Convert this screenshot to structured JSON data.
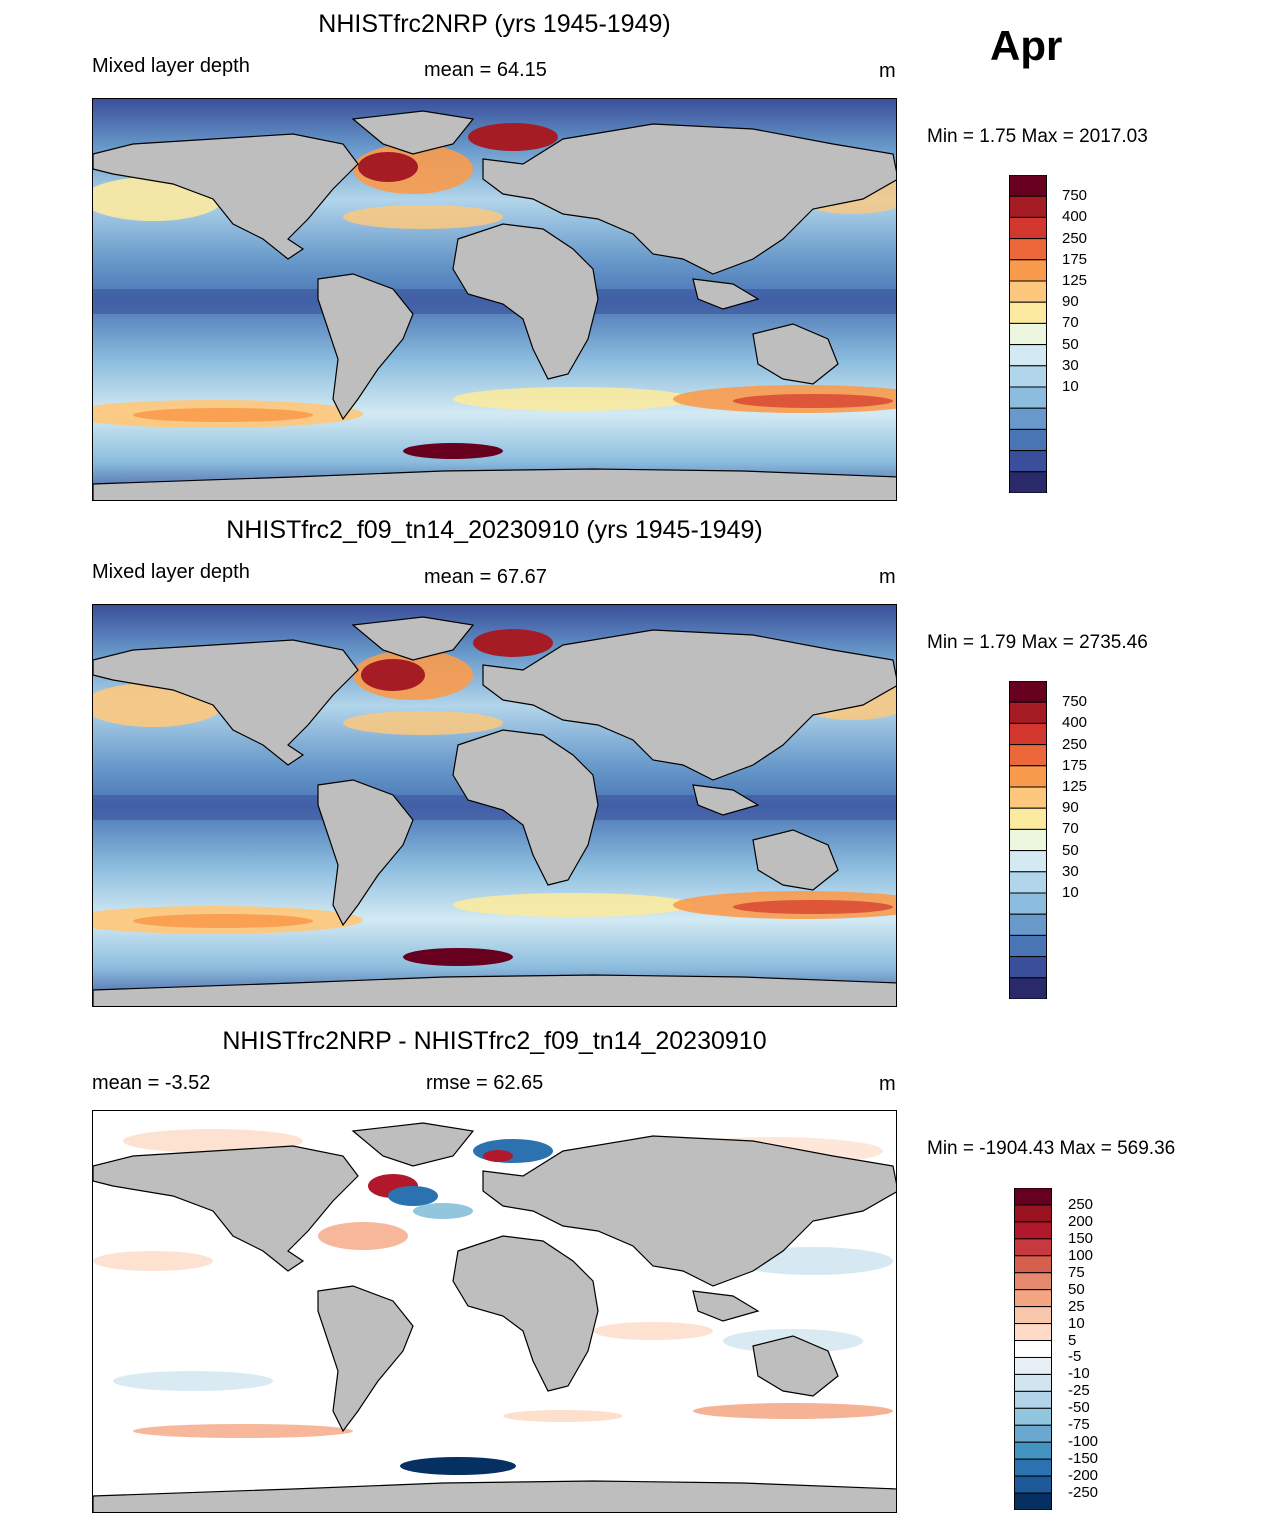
{
  "month": "Apr",
  "panels": [
    {
      "id": "p1",
      "title": "NHISTfrc2NRP (yrs 1945-1949)",
      "left_label": "Mixed layer depth",
      "center_label": "mean =  64.15",
      "units": "m",
      "minmax": "Min =    1.75 Max = 2017.03",
      "colorbar": {
        "labels": [
          "750",
          "400",
          "250",
          "175",
          "125",
          "90",
          "70",
          "50",
          "30",
          "10"
        ],
        "colors": [
          "#67001f",
          "#a51c24",
          "#d3362c",
          "#ec6739",
          "#f99b4d",
          "#fdc87e",
          "#fbeaa0",
          "#edf7e0",
          "#d3eaf3",
          "#b1d5ea",
          "#8cbdde",
          "#6899ca",
          "#4a75b4",
          "#3a4f9b",
          "#2a2a6b"
        ]
      }
    },
    {
      "id": "p2",
      "title": "NHISTfrc2_f09_tn14_20230910 (yrs 1945-1949)",
      "left_label": "Mixed layer depth",
      "center_label": "mean =  67.67",
      "units": "m",
      "minmax": "Min =    1.79 Max = 2735.46",
      "colorbar": {
        "labels": [
          "750",
          "400",
          "250",
          "175",
          "125",
          "90",
          "70",
          "50",
          "30",
          "10"
        ],
        "colors": [
          "#67001f",
          "#a51c24",
          "#d3362c",
          "#ec6739",
          "#f99b4d",
          "#fdc87e",
          "#fbeaa0",
          "#edf7e0",
          "#d3eaf3",
          "#b1d5ea",
          "#8cbdde",
          "#6899ca",
          "#4a75b4",
          "#3a4f9b",
          "#2a2a6b"
        ]
      }
    },
    {
      "id": "p3",
      "title": "NHISTfrc2NRP - NHISTfrc2_f09_tn14_20230910",
      "left_label": "mean =  -3.52",
      "center_label": "rmse =  62.65",
      "units": "m",
      "minmax": "Min = -1904.43 Max = 569.36",
      "colorbar": {
        "labels": [
          "250",
          "200",
          "150",
          "100",
          "75",
          "50",
          "25",
          "10",
          "5",
          "-5",
          "-10",
          "-25",
          "-50",
          "-75",
          "-100",
          "-150",
          "-200",
          "-250"
        ],
        "colors": [
          "#67001f",
          "#99121f",
          "#b2182b",
          "#c7393e",
          "#d6604d",
          "#e58a6e",
          "#f4a582",
          "#f8c6ab",
          "#fddbc7",
          "#ffffff",
          "#e6f0f6",
          "#d1e5f0",
          "#b3d4e8",
          "#92c5de",
          "#6ba8d0",
          "#4393c3",
          "#2d72b0",
          "#1c5a99",
          "#053061"
        ]
      }
    }
  ]
}
